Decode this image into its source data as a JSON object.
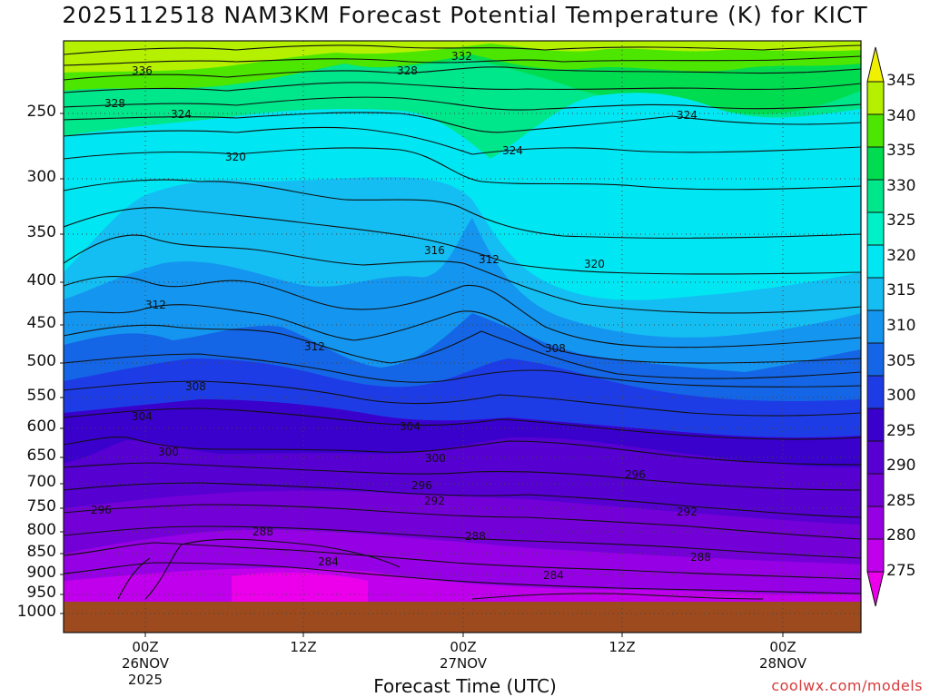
{
  "chart_data": {
    "type": "heatmap",
    "title": "2025112518 NAM3KM Forecast Potential Temperature (K) for KICT",
    "xlabel": "Forecast Time (UTC)",
    "ylabel": "",
    "y_axis_units": "hPa",
    "y_scale": "log",
    "ylim": [
      1000,
      200
    ],
    "y_ticks": [
      1000,
      950,
      900,
      850,
      800,
      750,
      700,
      650,
      600,
      550,
      500,
      450,
      400,
      350,
      300,
      250
    ],
    "y_tick_labels": [
      "1000",
      "950",
      "900",
      "850",
      "800",
      "750",
      "700",
      "650",
      "600",
      "550",
      "500",
      "450",
      "400",
      "350",
      "300",
      "250"
    ],
    "x_ticks": [
      {
        "line1": "00Z",
        "line2": "26NOV",
        "line3": "2025"
      },
      {
        "line1": "12Z",
        "line2": "",
        "line3": ""
      },
      {
        "line1": "00Z",
        "line2": "27NOV",
        "line3": ""
      },
      {
        "line1": "12Z",
        "line2": "",
        "line3": ""
      },
      {
        "line1": "00Z",
        "line2": "28NOV",
        "line3": ""
      }
    ],
    "colorbar": {
      "levels": [
        275,
        280,
        285,
        290,
        295,
        300,
        305,
        310,
        315,
        320,
        325,
        330,
        335,
        340,
        345
      ],
      "labels": [
        "275",
        "280",
        "285",
        "290",
        "295",
        "300",
        "305",
        "310",
        "315",
        "320",
        "325",
        "330",
        "335",
        "340",
        "345"
      ],
      "colors": [
        "#ec00ec",
        "#c000ec",
        "#9600e4",
        "#7400d8",
        "#5600d2",
        "#3a00cc",
        "#1e3ce6",
        "#1466e6",
        "#1496f0",
        "#14bef2",
        "#00e6f2",
        "#00f0c8",
        "#00e68a",
        "#00dc50",
        "#4ce600",
        "#b4f000",
        "#f0f000"
      ]
    },
    "contour_labels": [
      "336",
      "332",
      "328",
      "328",
      "324",
      "324",
      "324",
      "320",
      "320",
      "316",
      "312",
      "312",
      "312",
      "308",
      "308",
      "304",
      "304",
      "300",
      "300",
      "296",
      "296",
      "296",
      "292",
      "292",
      "288",
      "288",
      "288",
      "284",
      "284"
    ],
    "ground_color": "#9c4a1e",
    "grid": true
  },
  "credit": "coolwx.com/models"
}
